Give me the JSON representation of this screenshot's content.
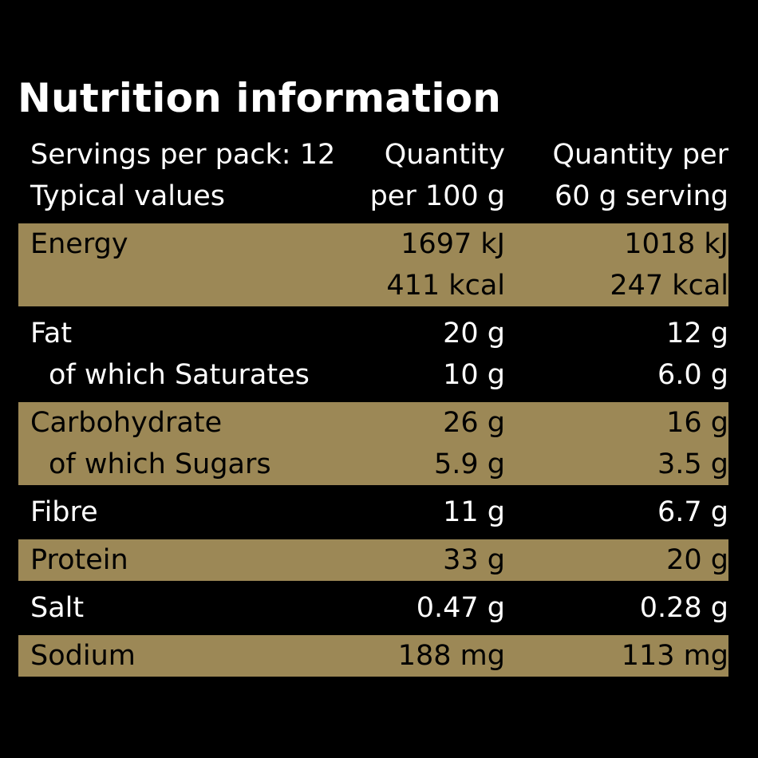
{
  "title": "Nutrition information",
  "header": {
    "col1": [
      "Servings per pack: 12",
      "Typical values"
    ],
    "col2": [
      "Quantity",
      "per 100 g"
    ],
    "col3": [
      "Quantity per",
      "60 g serving"
    ]
  },
  "colors": {
    "background": "#000000",
    "gold_band": "#9c8856",
    "text_light": "#ffffff",
    "text_dark": "#000000"
  },
  "groups": [
    {
      "shade": "gold",
      "rows": [
        {
          "name": "Energy",
          "per100": "1697 kJ",
          "serving": "1018 kJ",
          "indent": false
        },
        {
          "name": "",
          "per100": "411 kcal",
          "serving": "247 kcal",
          "indent": false
        }
      ]
    },
    {
      "shade": "dark",
      "rows": [
        {
          "name": "Fat",
          "per100": "20 g",
          "serving": "12 g",
          "indent": false
        },
        {
          "name": "of which Saturates",
          "per100": "10 g",
          "serving": "6.0 g",
          "indent": true
        }
      ]
    },
    {
      "shade": "gold",
      "rows": [
        {
          "name": "Carbohydrate",
          "per100": "26 g",
          "serving": "16 g",
          "indent": false
        },
        {
          "name": "of which Sugars",
          "per100": "5.9 g",
          "serving": "3.5 g",
          "indent": true
        }
      ]
    },
    {
      "shade": "dark",
      "rows": [
        {
          "name": "Fibre",
          "per100": "11 g",
          "serving": "6.7 g",
          "indent": false
        }
      ]
    },
    {
      "shade": "gold",
      "rows": [
        {
          "name": "Protein",
          "per100": "33 g",
          "serving": "20 g",
          "indent": false
        }
      ]
    },
    {
      "shade": "dark",
      "rows": [
        {
          "name": "Salt",
          "per100": "0.47 g",
          "serving": "0.28 g",
          "indent": false
        }
      ]
    },
    {
      "shade": "gold",
      "rows": [
        {
          "name": "Sodium",
          "per100": "188 mg",
          "serving": "113 mg",
          "indent": false
        }
      ]
    }
  ]
}
